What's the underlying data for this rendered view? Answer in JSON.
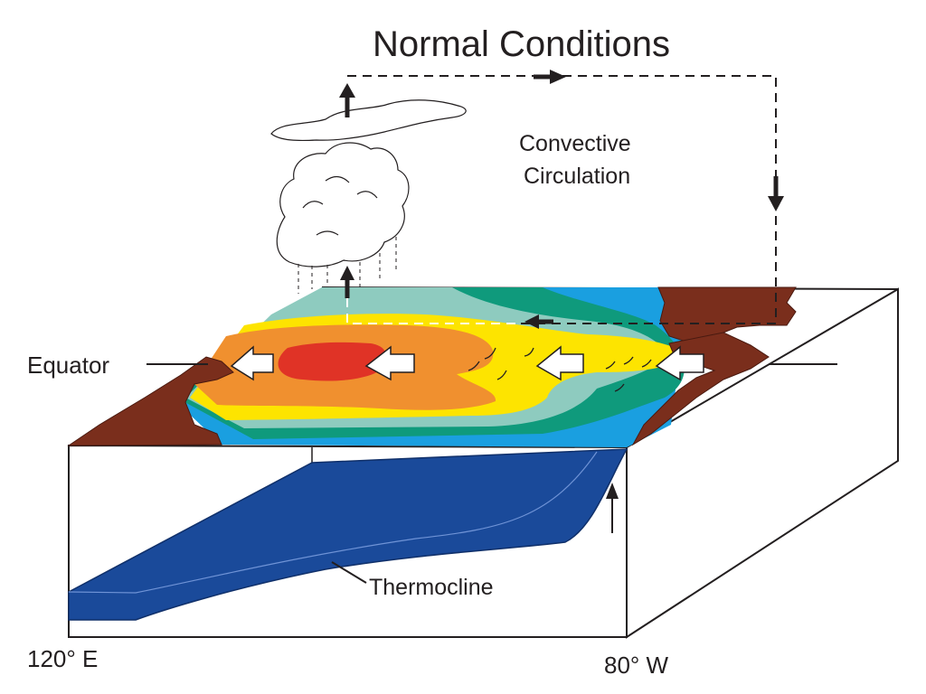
{
  "diagram": {
    "title": "Normal Conditions",
    "labels": {
      "convective_line1": "Convective",
      "convective_line2": "Circulation",
      "equator": "Equator",
      "thermocline": "Thermocline",
      "lon_west": "120° E",
      "lon_east": "80° W"
    },
    "colors": {
      "land": "#7a2e1c",
      "warmest": "#e03326",
      "warm": "#f0902f",
      "mild": "#fde400",
      "cool": "#8ecbbf",
      "cold": "#0f9a7c",
      "coldest": "#1a9fe0",
      "thermocline": "#1a4a9a",
      "arrow": "#231f20"
    }
  }
}
